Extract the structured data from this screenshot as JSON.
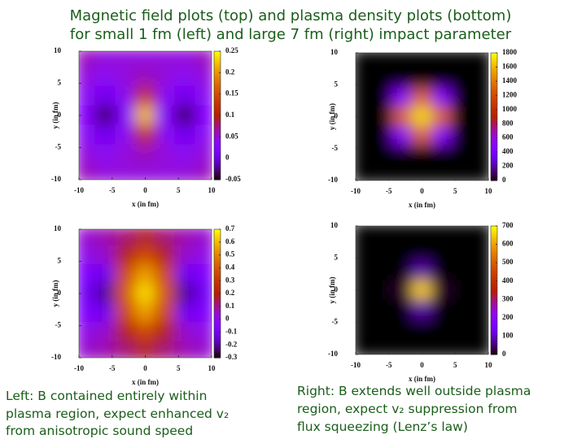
{
  "title": [
    "Magnetic field plots (top) and plasma density plots (bottom)",
    "for small 1 fm (left) and large 7 fm (right) impact parameter"
  ],
  "chart_data": [
    {
      "type": "heatmap",
      "colormap": "gnuplot",
      "x_label": "x (in fm)",
      "y_label": "y (in fm)",
      "xlim": [
        -10,
        10
      ],
      "ylim": [
        -10,
        10
      ],
      "xticks": [
        -10,
        -5,
        0,
        5,
        10
      ],
      "yticks": [
        -10,
        -5,
        0,
        5,
        10
      ],
      "x": [
        -9,
        -6,
        -3,
        0,
        3,
        6,
        9
      ],
      "y": [
        9,
        6,
        3,
        0,
        -3,
        -6,
        -9
      ],
      "z": [
        [
          0.06,
          0.05,
          0.05,
          0.05,
          0.05,
          0.05,
          0.06
        ],
        [
          0.05,
          0.04,
          0.05,
          0.06,
          0.05,
          0.04,
          0.05
        ],
        [
          0.04,
          0.01,
          0.04,
          0.12,
          0.04,
          0.01,
          0.04
        ],
        [
          0.03,
          -0.03,
          0.03,
          0.22,
          0.03,
          -0.03,
          0.03
        ],
        [
          0.04,
          0.01,
          0.04,
          0.12,
          0.04,
          0.01,
          0.04
        ],
        [
          0.05,
          0.04,
          0.05,
          0.06,
          0.05,
          0.04,
          0.05
        ],
        [
          0.06,
          0.05,
          0.05,
          0.05,
          0.05,
          0.05,
          0.06
        ]
      ],
      "clim": [
        -0.05,
        0.25
      ],
      "cticks": [
        -0.05,
        0,
        0.05,
        0.1,
        0.15,
        0.2,
        0.25
      ]
    },
    {
      "type": "heatmap",
      "colormap": "gnuplot",
      "x_label": "x (in fm)",
      "y_label": "y (in fm)",
      "xlim": [
        -10,
        10
      ],
      "ylim": [
        -10,
        10
      ],
      "xticks": [
        -10,
        -5,
        0,
        5,
        10
      ],
      "yticks": [
        -10,
        -5,
        0,
        5,
        10
      ],
      "x": [
        -9,
        -6,
        -3,
        0,
        3,
        6,
        9
      ],
      "y": [
        9,
        6,
        3,
        0,
        -3,
        -6,
        -9
      ],
      "z": [
        [
          0,
          0,
          0,
          0,
          0,
          0,
          0
        ],
        [
          0,
          0,
          0,
          0,
          0,
          0,
          0
        ],
        [
          0,
          0,
          500,
          1300,
          500,
          0,
          0
        ],
        [
          0,
          0,
          1300,
          1700,
          1300,
          0,
          0
        ],
        [
          0,
          0,
          500,
          1300,
          500,
          0,
          0
        ],
        [
          0,
          0,
          0,
          0,
          0,
          0,
          0
        ],
        [
          0,
          0,
          0,
          0,
          0,
          0,
          0
        ]
      ],
      "clim": [
        0,
        1800
      ],
      "cticks": [
        0,
        200,
        400,
        600,
        800,
        1000,
        1200,
        1400,
        1600,
        1800
      ]
    },
    {
      "type": "heatmap",
      "colormap": "gnuplot",
      "x_label": "x (in fm)",
      "y_label": "y (in fm)",
      "xlim": [
        -10,
        10
      ],
      "ylim": [
        -10,
        10
      ],
      "xticks": [
        -10,
        -5,
        0,
        5,
        10
      ],
      "yticks": [
        -10,
        -5,
        0,
        5,
        10
      ],
      "x": [
        -9,
        -6,
        -3,
        0,
        3,
        6,
        9
      ],
      "y": [
        9,
        6,
        3,
        0,
        -3,
        -6,
        -9
      ],
      "z": [
        [
          0.05,
          0.08,
          0.12,
          0.18,
          0.12,
          0.08,
          0.05
        ],
        [
          0.02,
          0.05,
          0.2,
          0.35,
          0.2,
          0.05,
          0.02
        ],
        [
          -0.05,
          -0.1,
          0.35,
          0.55,
          0.35,
          -0.1,
          -0.05
        ],
        [
          -0.1,
          -0.2,
          0.4,
          0.65,
          0.4,
          -0.2,
          -0.1
        ],
        [
          -0.05,
          -0.1,
          0.35,
          0.55,
          0.35,
          -0.1,
          -0.05
        ],
        [
          0.02,
          0.05,
          0.2,
          0.35,
          0.2,
          0.05,
          0.02
        ],
        [
          0.05,
          0.08,
          0.12,
          0.18,
          0.12,
          0.08,
          0.05
        ]
      ],
      "clim": [
        -0.3,
        0.7
      ],
      "cticks": [
        -0.3,
        -0.2,
        -0.1,
        0,
        0.1,
        0.2,
        0.3,
        0.4,
        0.5,
        0.6,
        0.7
      ]
    },
    {
      "type": "heatmap",
      "colormap": "gnuplot",
      "x_label": "x (in fm)",
      "y_label": "y (in fm)",
      "xlim": [
        -10,
        10
      ],
      "ylim": [
        -10,
        10
      ],
      "xticks": [
        -10,
        -5,
        0,
        5,
        10
      ],
      "yticks": [
        -10,
        -5,
        0,
        5,
        10
      ],
      "x": [
        -9,
        -6,
        -3,
        0,
        3,
        6,
        9
      ],
      "y": [
        9,
        6,
        3,
        0,
        -3,
        -6,
        -9
      ],
      "z": [
        [
          0,
          0,
          0,
          0,
          0,
          0,
          0
        ],
        [
          0,
          0,
          0,
          0,
          0,
          0,
          0
        ],
        [
          0,
          0,
          0,
          80,
          0,
          0,
          0
        ],
        [
          0,
          0,
          20,
          650,
          20,
          0,
          0
        ],
        [
          0,
          0,
          0,
          80,
          0,
          0,
          0
        ],
        [
          0,
          0,
          0,
          0,
          0,
          0,
          0
        ],
        [
          0,
          0,
          0,
          0,
          0,
          0,
          0
        ]
      ],
      "clim": [
        0,
        700
      ],
      "cticks": [
        0,
        100,
        200,
        300,
        400,
        500,
        600,
        700
      ]
    }
  ],
  "captions": {
    "left": [
      "Left: B contained entirely within",
      "plasma region, expect enhanced v₂",
      "from anisotropic sound speed"
    ],
    "right": [
      "Right: B extends well outside plasma",
      "region, expect v₂ suppression from",
      "flux squeezing (Lenz’s law)"
    ]
  }
}
